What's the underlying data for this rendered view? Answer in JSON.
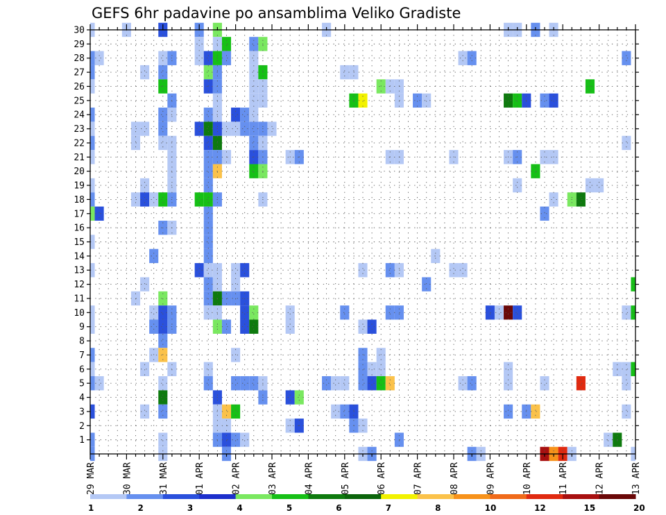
{
  "chart_data": {
    "type": "heatmap",
    "title": "GEFS 6hr padavine po ansamblima Veliko Gradiste",
    "y_ticks": [
      1,
      2,
      3,
      4,
      5,
      6,
      7,
      8,
      9,
      10,
      11,
      12,
      13,
      14,
      15,
      16,
      17,
      18,
      19,
      20,
      21,
      22,
      23,
      24,
      25,
      26,
      27,
      28,
      29,
      30
    ],
    "y_range": [
      0,
      30
    ],
    "x_range": [
      0,
      60
    ],
    "x_ticks": [
      "29 MAR",
      "30 MAR",
      "31 MAR",
      "01 APR",
      "02 APR",
      "03 APR",
      "04 APR",
      "05 APR",
      "06 APR",
      "07 APR",
      "08 APR",
      "09 APR",
      "10 APR",
      "11 APR",
      "12 APR",
      "13 APR"
    ],
    "x_steps_per_label": 4,
    "grid": true,
    "levels": [
      "1",
      "2",
      "3",
      "4",
      "5",
      "6",
      "7",
      "8",
      "10",
      "12",
      "15",
      "20"
    ],
    "colors": [
      "#b4c8f5",
      "#6690ef",
      "#2a50dc",
      "#1c2fcc",
      "#7ae860",
      "#16c016",
      "#0e7a0e",
      "#0b640b",
      "#f2f200",
      "#fbc24a",
      "#f7921a",
      "#f06a1a",
      "#e02a10",
      "#a81010",
      "#6a0808"
    ],
    "cells": [
      [
        0,
        30,
        0
      ],
      [
        4,
        30,
        0
      ],
      [
        8,
        30,
        2
      ],
      [
        12,
        30,
        1
      ],
      [
        14,
        30,
        4
      ],
      [
        26,
        30,
        0
      ],
      [
        46,
        30,
        0
      ],
      [
        47,
        30,
        0
      ],
      [
        49,
        30,
        1
      ],
      [
        51,
        30,
        0
      ],
      [
        14,
        29,
        0
      ],
      [
        15,
        29,
        5
      ],
      [
        18,
        29,
        1
      ],
      [
        19,
        29,
        4
      ],
      [
        12,
        29,
        0
      ],
      [
        0,
        28,
        1
      ],
      [
        1,
        28,
        0
      ],
      [
        8,
        28,
        0
      ],
      [
        9,
        28,
        1
      ],
      [
        12,
        28,
        0
      ],
      [
        13,
        28,
        2
      ],
      [
        14,
        28,
        5
      ],
      [
        15,
        28,
        1
      ],
      [
        18,
        28,
        0
      ],
      [
        41,
        28,
        0
      ],
      [
        42,
        28,
        1
      ],
      [
        59,
        28,
        1
      ],
      [
        0,
        27,
        1
      ],
      [
        6,
        27,
        0
      ],
      [
        8,
        27,
        1
      ],
      [
        13,
        27,
        4
      ],
      [
        14,
        27,
        1
      ],
      [
        18,
        27,
        0
      ],
      [
        19,
        27,
        5
      ],
      [
        28,
        27,
        0
      ],
      [
        29,
        27,
        0
      ],
      [
        0,
        26,
        0
      ],
      [
        8,
        26,
        5
      ],
      [
        13,
        26,
        2
      ],
      [
        14,
        26,
        1
      ],
      [
        18,
        26,
        0
      ],
      [
        19,
        26,
        0
      ],
      [
        32,
        26,
        4
      ],
      [
        33,
        26,
        0
      ],
      [
        34,
        26,
        0
      ],
      [
        55,
        26,
        5
      ],
      [
        9,
        25,
        1
      ],
      [
        14,
        25,
        0
      ],
      [
        18,
        25,
        0
      ],
      [
        19,
        25,
        0
      ],
      [
        29,
        25,
        5
      ],
      [
        30,
        25,
        8
      ],
      [
        34,
        25,
        0
      ],
      [
        36,
        25,
        1
      ],
      [
        37,
        25,
        0
      ],
      [
        46,
        25,
        6
      ],
      [
        47,
        25,
        5
      ],
      [
        48,
        25,
        2
      ],
      [
        50,
        25,
        1
      ],
      [
        51,
        25,
        2
      ],
      [
        0,
        24,
        1
      ],
      [
        8,
        24,
        1
      ],
      [
        9,
        24,
        0
      ],
      [
        13,
        24,
        1
      ],
      [
        14,
        24,
        0
      ],
      [
        16,
        24,
        2
      ],
      [
        17,
        24,
        1
      ],
      [
        18,
        24,
        0
      ],
      [
        0,
        23,
        0
      ],
      [
        5,
        23,
        0
      ],
      [
        6,
        23,
        0
      ],
      [
        8,
        23,
        1
      ],
      [
        12,
        23,
        2
      ],
      [
        13,
        23,
        6
      ],
      [
        14,
        23,
        2
      ],
      [
        15,
        23,
        0
      ],
      [
        16,
        23,
        0
      ],
      [
        17,
        23,
        1
      ],
      [
        18,
        23,
        1
      ],
      [
        19,
        23,
        1
      ],
      [
        20,
        23,
        0
      ],
      [
        0,
        22,
        1
      ],
      [
        5,
        22,
        0
      ],
      [
        8,
        22,
        0
      ],
      [
        9,
        22,
        0
      ],
      [
        13,
        22,
        2
      ],
      [
        14,
        22,
        6
      ],
      [
        18,
        22,
        1
      ],
      [
        19,
        22,
        0
      ],
      [
        59,
        22,
        0
      ],
      [
        0,
        21,
        0
      ],
      [
        9,
        21,
        0
      ],
      [
        13,
        21,
        1
      ],
      [
        14,
        21,
        1
      ],
      [
        15,
        21,
        0
      ],
      [
        18,
        21,
        2
      ],
      [
        19,
        21,
        1
      ],
      [
        22,
        21,
        0
      ],
      [
        23,
        21,
        1
      ],
      [
        33,
        21,
        0
      ],
      [
        34,
        21,
        0
      ],
      [
        40,
        21,
        0
      ],
      [
        46,
        21,
        0
      ],
      [
        47,
        21,
        1
      ],
      [
        50,
        21,
        0
      ],
      [
        51,
        21,
        0
      ],
      [
        9,
        20,
        0
      ],
      [
        13,
        20,
        1
      ],
      [
        14,
        20,
        9
      ],
      [
        18,
        20,
        5
      ],
      [
        19,
        20,
        4
      ],
      [
        49,
        20,
        5
      ],
      [
        0,
        19,
        0
      ],
      [
        6,
        19,
        0
      ],
      [
        9,
        19,
        0
      ],
      [
        13,
        19,
        1
      ],
      [
        47,
        19,
        0
      ],
      [
        55,
        19,
        0
      ],
      [
        56,
        19,
        0
      ],
      [
        0,
        18,
        1
      ],
      [
        5,
        18,
        0
      ],
      [
        6,
        18,
        2
      ],
      [
        7,
        18,
        0
      ],
      [
        8,
        18,
        5
      ],
      [
        9,
        18,
        1
      ],
      [
        12,
        18,
        5
      ],
      [
        13,
        18,
        5
      ],
      [
        14,
        18,
        1
      ],
      [
        19,
        18,
        0
      ],
      [
        51,
        18,
        0
      ],
      [
        53,
        18,
        4
      ],
      [
        54,
        18,
        6
      ],
      [
        0,
        17,
        4
      ],
      [
        1,
        17,
        2
      ],
      [
        13,
        17,
        1
      ],
      [
        50,
        17,
        1
      ],
      [
        8,
        16,
        1
      ],
      [
        9,
        16,
        0
      ],
      [
        13,
        16,
        1
      ],
      [
        0,
        15,
        0
      ],
      [
        13,
        15,
        1
      ],
      [
        7,
        14,
        1
      ],
      [
        13,
        14,
        1
      ],
      [
        38,
        14,
        0
      ],
      [
        12,
        13,
        2
      ],
      [
        13,
        13,
        0
      ],
      [
        14,
        13,
        0
      ],
      [
        16,
        13,
        0
      ],
      [
        17,
        13,
        2
      ],
      [
        30,
        13,
        0
      ],
      [
        33,
        13,
        1
      ],
      [
        34,
        13,
        0
      ],
      [
        40,
        13,
        0
      ],
      [
        41,
        13,
        0
      ],
      [
        0,
        13,
        0
      ],
      [
        6,
        12,
        0
      ],
      [
        13,
        12,
        1
      ],
      [
        14,
        12,
        0
      ],
      [
        16,
        12,
        0
      ],
      [
        37,
        12,
        1
      ],
      [
        60,
        12,
        5
      ],
      [
        5,
        11,
        0
      ],
      [
        8,
        11,
        4
      ],
      [
        13,
        11,
        1
      ],
      [
        14,
        11,
        6
      ],
      [
        15,
        11,
        1
      ],
      [
        16,
        11,
        1
      ],
      [
        17,
        11,
        2
      ],
      [
        0,
        10,
        0
      ],
      [
        7,
        10,
        0
      ],
      [
        8,
        10,
        2
      ],
      [
        9,
        10,
        1
      ],
      [
        13,
        10,
        0
      ],
      [
        14,
        10,
        0
      ],
      [
        17,
        10,
        2
      ],
      [
        18,
        10,
        4
      ],
      [
        22,
        10,
        0
      ],
      [
        28,
        10,
        1
      ],
      [
        33,
        10,
        1
      ],
      [
        34,
        10,
        1
      ],
      [
        44,
        10,
        2
      ],
      [
        45,
        10,
        0
      ],
      [
        46,
        10,
        14
      ],
      [
        47,
        10,
        2
      ],
      [
        59,
        10,
        0
      ],
      [
        60,
        10,
        5
      ],
      [
        0,
        9,
        0
      ],
      [
        7,
        9,
        1
      ],
      [
        8,
        9,
        2
      ],
      [
        9,
        9,
        1
      ],
      [
        14,
        9,
        4
      ],
      [
        15,
        9,
        1
      ],
      [
        17,
        9,
        2
      ],
      [
        18,
        9,
        6
      ],
      [
        22,
        9,
        0
      ],
      [
        30,
        9,
        0
      ],
      [
        31,
        9,
        2
      ],
      [
        8,
        8,
        1
      ],
      [
        0,
        7,
        1
      ],
      [
        7,
        7,
        0
      ],
      [
        8,
        7,
        9
      ],
      [
        16,
        7,
        0
      ],
      [
        30,
        7,
        1
      ],
      [
        32,
        7,
        0
      ],
      [
        0,
        6,
        0
      ],
      [
        6,
        6,
        0
      ],
      [
        9,
        6,
        0
      ],
      [
        13,
        6,
        0
      ],
      [
        30,
        6,
        1
      ],
      [
        31,
        6,
        0
      ],
      [
        32,
        6,
        0
      ],
      [
        46,
        6,
        0
      ],
      [
        58,
        6,
        0
      ],
      [
        59,
        6,
        0
      ],
      [
        60,
        6,
        5
      ],
      [
        0,
        5,
        1
      ],
      [
        1,
        5,
        0
      ],
      [
        8,
        5,
        0
      ],
      [
        13,
        5,
        1
      ],
      [
        16,
        5,
        1
      ],
      [
        17,
        5,
        1
      ],
      [
        18,
        5,
        1
      ],
      [
        19,
        5,
        0
      ],
      [
        26,
        5,
        1
      ],
      [
        27,
        5,
        0
      ],
      [
        28,
        5,
        0
      ],
      [
        30,
        5,
        1
      ],
      [
        31,
        5,
        2
      ],
      [
        32,
        5,
        5
      ],
      [
        33,
        5,
        9
      ],
      [
        41,
        5,
        0
      ],
      [
        42,
        5,
        1
      ],
      [
        46,
        5,
        0
      ],
      [
        50,
        5,
        0
      ],
      [
        54,
        5,
        12
      ],
      [
        59,
        5,
        0
      ],
      [
        8,
        4,
        6
      ],
      [
        14,
        4,
        2
      ],
      [
        19,
        4,
        1
      ],
      [
        22,
        4,
        2
      ],
      [
        23,
        4,
        4
      ],
      [
        0,
        3,
        2
      ],
      [
        6,
        3,
        0
      ],
      [
        8,
        3,
        1
      ],
      [
        14,
        3,
        0
      ],
      [
        15,
        3,
        9
      ],
      [
        16,
        3,
        5
      ],
      [
        27,
        3,
        0
      ],
      [
        28,
        3,
        1
      ],
      [
        29,
        3,
        2
      ],
      [
        46,
        3,
        1
      ],
      [
        48,
        3,
        1
      ],
      [
        49,
        3,
        9
      ],
      [
        59,
        3,
        0
      ],
      [
        14,
        2,
        0
      ],
      [
        15,
        2,
        0
      ],
      [
        22,
        2,
        0
      ],
      [
        23,
        2,
        2
      ],
      [
        29,
        2,
        1
      ],
      [
        30,
        2,
        0
      ],
      [
        0,
        1,
        1
      ],
      [
        8,
        1,
        0
      ],
      [
        14,
        1,
        1
      ],
      [
        15,
        1,
        2
      ],
      [
        16,
        1,
        1
      ],
      [
        17,
        1,
        0
      ],
      [
        34,
        1,
        1
      ],
      [
        57,
        1,
        0
      ],
      [
        58,
        1,
        6
      ],
      [
        0,
        0,
        1
      ],
      [
        8,
        0,
        0
      ],
      [
        15,
        0,
        1
      ],
      [
        30,
        0,
        0
      ],
      [
        31,
        0,
        1
      ],
      [
        42,
        0,
        1
      ],
      [
        43,
        0,
        0
      ],
      [
        50,
        0,
        13
      ],
      [
        51,
        0,
        10
      ],
      [
        52,
        0,
        12
      ],
      [
        53,
        0,
        0
      ],
      [
        60,
        0,
        0
      ]
    ]
  }
}
